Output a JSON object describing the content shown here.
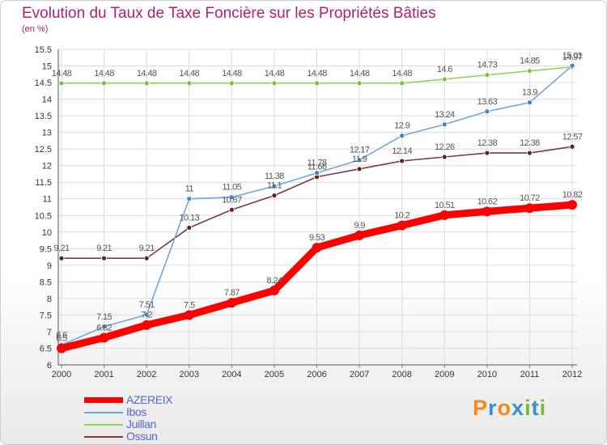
{
  "header": {
    "title": "Evolution du Taux de Taxe Foncière sur les Propriétés Bâties",
    "unit": "(en %)"
  },
  "logo": {
    "letters": [
      "P",
      "r",
      "o",
      "x",
      "i",
      "t",
      "i"
    ],
    "colors": [
      "#f08a1e",
      "#3a8fd0",
      "#f08a1e",
      "#3a8fd0",
      "#7ab73a",
      "#3a8fd0",
      "#7ab73a"
    ]
  },
  "chart_data": {
    "type": "line",
    "title": "Evolution du Taux de Taxe Foncière sur les Propriétés Bâties",
    "ylabel": "(en %)",
    "xlabel": "",
    "x": [
      "2000",
      "2001",
      "2002",
      "2003",
      "2004",
      "2005",
      "2006",
      "2007",
      "2008",
      "2009",
      "2010",
      "2011",
      "2012"
    ],
    "ylim": [
      6,
      15.5
    ],
    "yticks": [
      "6",
      "6.5",
      "7",
      "7.5",
      "8",
      "8.5",
      "9",
      "9.5",
      "10",
      "10.5",
      "11",
      "11.5",
      "12",
      "12.5",
      "13",
      "13.5",
      "14",
      "14.5",
      "15",
      "15.5"
    ],
    "grid": true,
    "legend_position": "bottom-left",
    "series": [
      {
        "name": "Juillan",
        "color": "#8fd45c",
        "marker": "#7ac143",
        "thick": false,
        "values": [
          14.48,
          14.48,
          14.48,
          14.48,
          14.48,
          14.48,
          14.48,
          14.48,
          14.48,
          14.6,
          14.73,
          14.85,
          14.97
        ],
        "labels": [
          "14.48",
          "14.48",
          "14.48",
          "14.48",
          "14.48",
          "14.48",
          "14.48",
          "14.48",
          "14.48",
          "14.6",
          "14.73",
          "14.85",
          "14.97"
        ]
      },
      {
        "name": "Ossun",
        "color": "#7d3a3f",
        "marker": "#5e2326",
        "thick": false,
        "values": [
          9.21,
          9.21,
          9.21,
          10.13,
          10.67,
          11.1,
          11.66,
          11.9,
          12.14,
          12.26,
          12.38,
          12.38,
          12.57
        ],
        "labels": [
          "9.21",
          "9.21",
          "9.21",
          "10.13",
          "10.67",
          "11.1",
          "11.66",
          "11.9",
          "12.14",
          "12.26",
          "12.38",
          "12.38",
          "12.57"
        ]
      },
      {
        "name": "Ibos",
        "color": "#6fa8dc",
        "marker": "#3d85c6",
        "thick": false,
        "values": [
          6.6,
          7.15,
          7.51,
          11,
          11.05,
          11.38,
          11.78,
          12.17,
          12.9,
          13.24,
          13.63,
          13.9,
          15.01
        ],
        "labels": [
          "6.6",
          "7.15",
          "7.51",
          "11",
          "11.05",
          "11.38",
          "11.78",
          "12.17",
          "12.9",
          "13.24",
          "13.63",
          "13.9",
          "15.01"
        ]
      },
      {
        "name": "AZEREIX",
        "color": "#ff0000",
        "marker": "#ff0000",
        "thick": true,
        "values": [
          6.5,
          6.82,
          7.2,
          7.5,
          7.87,
          8.24,
          9.53,
          9.9,
          10.2,
          10.51,
          10.62,
          10.72,
          10.82
        ],
        "labels": [
          "6.5",
          "6.82",
          "7.2",
          "7.5",
          "7.87",
          "8.24",
          "9.53",
          "9.9",
          "10.2",
          "10.51",
          "10.62",
          "10.72",
          "10.82"
        ]
      }
    ],
    "legend_order": [
      "AZEREIX",
      "Ibos",
      "Juillan",
      "Ossun"
    ]
  }
}
